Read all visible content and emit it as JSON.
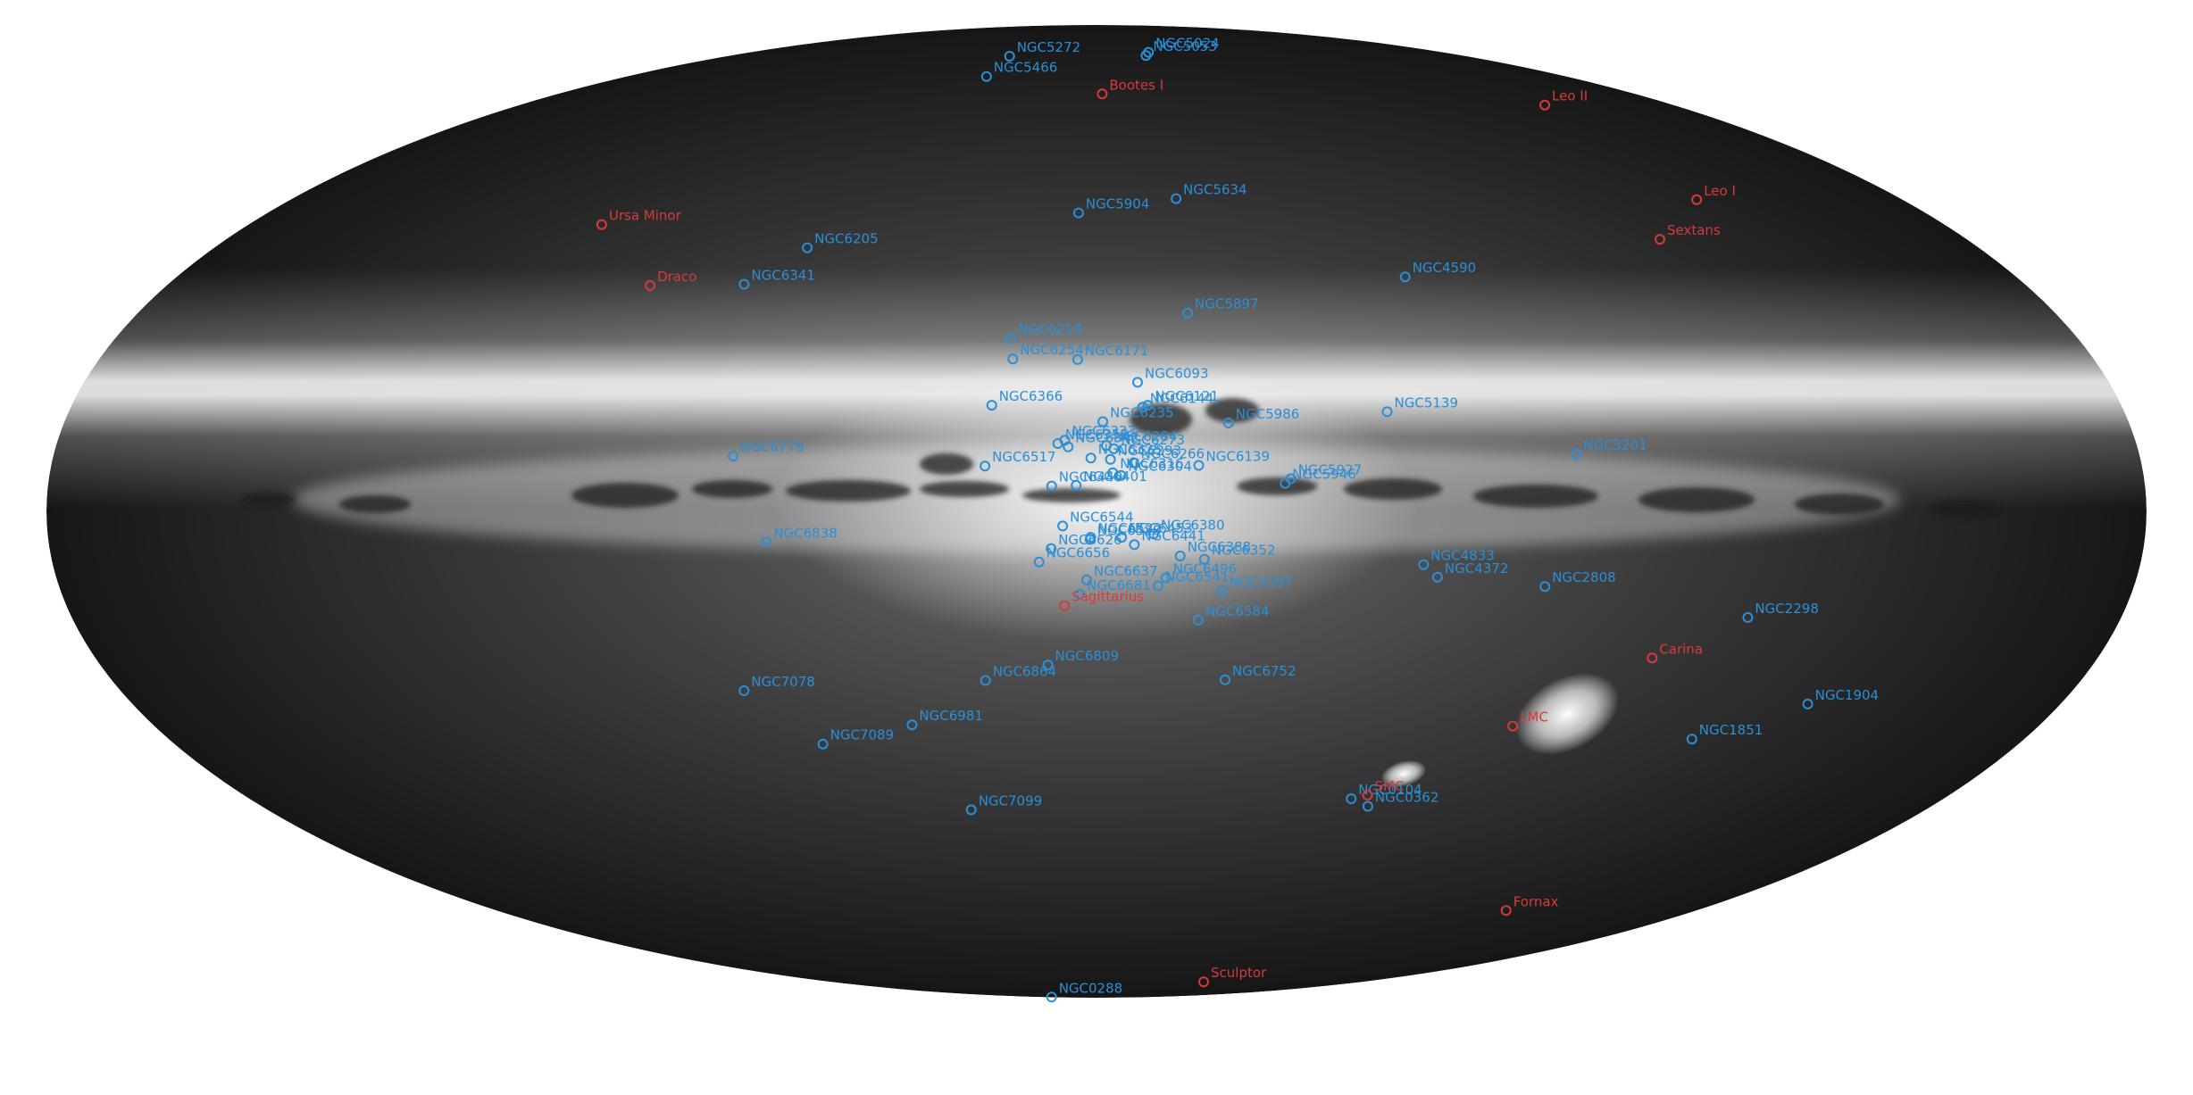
{
  "colors": {
    "globular": "#2a8fd6",
    "dwarf": "#d63a3a",
    "sky_core": "#f2f2f2",
    "sky_edge": "#141414"
  },
  "clusters": [
    {
      "name": "NGC5272",
      "l": 42.2,
      "b": 78.7
    },
    {
      "name": "NGC5024",
      "l": 333.0,
      "b": 79.8
    },
    {
      "name": "NGC5053",
      "l": 335.7,
      "b": 78.9
    },
    {
      "name": "NGC5466",
      "l": 42.1,
      "b": 73.6
    },
    {
      "name": "NGC5904",
      "l": 3.9,
      "b": 46.8
    },
    {
      "name": "NGC5634",
      "l": 342.2,
      "b": 49.3
    },
    {
      "name": "NGC6205",
      "l": 59.0,
      "b": 40.9
    },
    {
      "name": "NGC6341",
      "l": 68.3,
      "b": 34.9
    },
    {
      "name": "NGC4590",
      "l": 299.6,
      "b": 36.1
    },
    {
      "name": "NGC5897",
      "l": 342.9,
      "b": 30.3
    },
    {
      "name": "NGC6218",
      "l": 15.7,
      "b": 26.3
    },
    {
      "name": "NGC6254",
      "l": 15.1,
      "b": 23.1
    },
    {
      "name": "NGC6366",
      "l": 18.4,
      "b": 16.0
    },
    {
      "name": "NGC6171",
      "l": 3.4,
      "b": 23.0
    },
    {
      "name": "NGC6093",
      "l": 352.7,
      "b": 19.5
    },
    {
      "name": "NGC6121",
      "l": 351.0,
      "b": 16.0
    },
    {
      "name": "NGC6144",
      "l": 351.9,
      "b": 15.7
    },
    {
      "name": "NGC6139",
      "l": 342.4,
      "b": 6.9
    },
    {
      "name": "NGC5986",
      "l": 337.0,
      "b": 13.3
    },
    {
      "name": "NGC5139",
      "l": 309.1,
      "b": 15.0
    },
    {
      "name": "NGC6752",
      "l": 336.5,
      "b": -25.6
    },
    {
      "name": "NGC6779",
      "l": 62.7,
      "b": 8.3
    },
    {
      "name": "NGC6356",
      "l": 6.7,
      "b": 10.2
    },
    {
      "name": "NGC6342",
      "l": 4.9,
      "b": 9.7
    },
    {
      "name": "NGC6284",
      "l": 358.3,
      "b": 9.9
    },
    {
      "name": "NGC6333",
      "l": 5.5,
      "b": 10.7
    },
    {
      "name": "NGC6235",
      "l": 358.9,
      "b": 13.5
    },
    {
      "name": "NGC6266",
      "l": 353.6,
      "b": 7.3
    },
    {
      "name": "NGC6304",
      "l": 355.8,
      "b": 5.4
    },
    {
      "name": "NGC5946",
      "l": 327.6,
      "b": 4.2
    },
    {
      "name": "NGC5927",
      "l": 326.6,
      "b": 4.9
    },
    {
      "name": "NGC6316",
      "l": 357.2,
      "b": 5.8
    },
    {
      "name": "NGC6273",
      "l": 357.0,
      "b": 9.4
    },
    {
      "name": "NGC6517",
      "l": 19.2,
      "b": 6.8
    },
    {
      "name": "NGC6440",
      "l": 7.7,
      "b": 3.8
    },
    {
      "name": "NGC6293",
      "l": 357.6,
      "b": 7.8
    },
    {
      "name": "NGC6544",
      "l": 5.8,
      "b": -2.2
    },
    {
      "name": "NGC6401",
      "l": 3.5,
      "b": 3.9
    },
    {
      "name": "NGC6380",
      "l": 350.2,
      "b": -3.4
    },
    {
      "name": "NGC6453",
      "l": 355.7,
      "b": -3.9
    },
    {
      "name": "NGC6388",
      "l": 345.6,
      "b": -6.7
    },
    {
      "name": "NGC6352",
      "l": 341.4,
      "b": -7.2
    },
    {
      "name": "NGC6522",
      "l": 1.0,
      "b": -3.9
    },
    {
      "name": "NGC6325",
      "l": 0.97,
      "b": 8.0
    },
    {
      "name": "NGC6528",
      "l": 1.1,
      "b": -4.2
    },
    {
      "name": "NGC6626",
      "l": 7.8,
      "b": -5.6
    },
    {
      "name": "NGC6496",
      "l": 348.0,
      "b": -10.0
    },
    {
      "name": "NGC6441",
      "l": 353.5,
      "b": -5.0
    },
    {
      "name": "NGC6656",
      "l": 9.9,
      "b": -7.6
    },
    {
      "name": "NGC6637",
      "l": 1.7,
      "b": -10.3
    },
    {
      "name": "NGC6397",
      "l": 338.2,
      "b": -12.0
    },
    {
      "name": "NGC6681",
      "l": 2.9,
      "b": -12.5
    },
    {
      "name": "NGC6541",
      "l": 349.3,
      "b": -11.2
    },
    {
      "name": "NGC4833",
      "l": 303.6,
      "b": -8.0
    },
    {
      "name": "NGC4372",
      "l": 301.0,
      "b": -9.9
    },
    {
      "name": "NGC6838",
      "l": 56.7,
      "b": -4.6
    },
    {
      "name": "NGC3201",
      "l": 277.2,
      "b": 8.6
    },
    {
      "name": "NGC2808",
      "l": 282.2,
      "b": -11.3
    },
    {
      "name": "NGC2298",
      "l": 245.6,
      "b": -16.0
    },
    {
      "name": "NGC6584",
      "l": 342.1,
      "b": -16.4
    },
    {
      "name": "NGC6809",
      "l": 8.8,
      "b": -23.3
    },
    {
      "name": "NGC6864",
      "l": 20.3,
      "b": -25.7
    },
    {
      "name": "NGC7078",
      "l": 65.0,
      "b": -27.3
    },
    {
      "name": "NGC6981",
      "l": 35.2,
      "b": -32.7
    },
    {
      "name": "NGC7089",
      "l": 53.4,
      "b": -35.8
    },
    {
      "name": "NGC1904",
      "l": 227.2,
      "b": -29.4
    },
    {
      "name": "NGC1851",
      "l": 244.5,
      "b": -35.0
    },
    {
      "name": "NGC7099",
      "l": 27.2,
      "b": -46.8
    },
    {
      "name": "NGC0104",
      "l": 305.9,
      "b": -44.9
    },
    {
      "name": "NGC0362",
      "l": 301.5,
      "b": -46.2
    },
    {
      "name": "NGC0288",
      "l": 152.3,
      "b": -89.4
    }
  ],
  "dwarfs": [
    {
      "name": "Leo II",
      "l": 220.2,
      "b": 67.2
    },
    {
      "name": "Bootes I",
      "l": 358.1,
      "b": 69.6
    },
    {
      "name": "Leo I",
      "l": 226.0,
      "b": 49.1
    },
    {
      "name": "Ursa Minor",
      "l": 105.0,
      "b": 44.8
    },
    {
      "name": "Sextans",
      "l": 243.5,
      "b": 42.3
    },
    {
      "name": "Draco",
      "l": 86.4,
      "b": 34.7
    },
    {
      "name": "Sagittarius",
      "l": 5.6,
      "b": -14.2
    },
    {
      "name": "Carina",
      "l": 260.1,
      "b": -22.2
    },
    {
      "name": "LMC",
      "l": 280.5,
      "b": -32.9
    },
    {
      "name": "SMC",
      "l": 302.8,
      "b": -44.3
    },
    {
      "name": "Fornax",
      "l": 237.1,
      "b": -65.7
    },
    {
      "name": "Sculptor",
      "l": 287.5,
      "b": -83.2
    }
  ]
}
